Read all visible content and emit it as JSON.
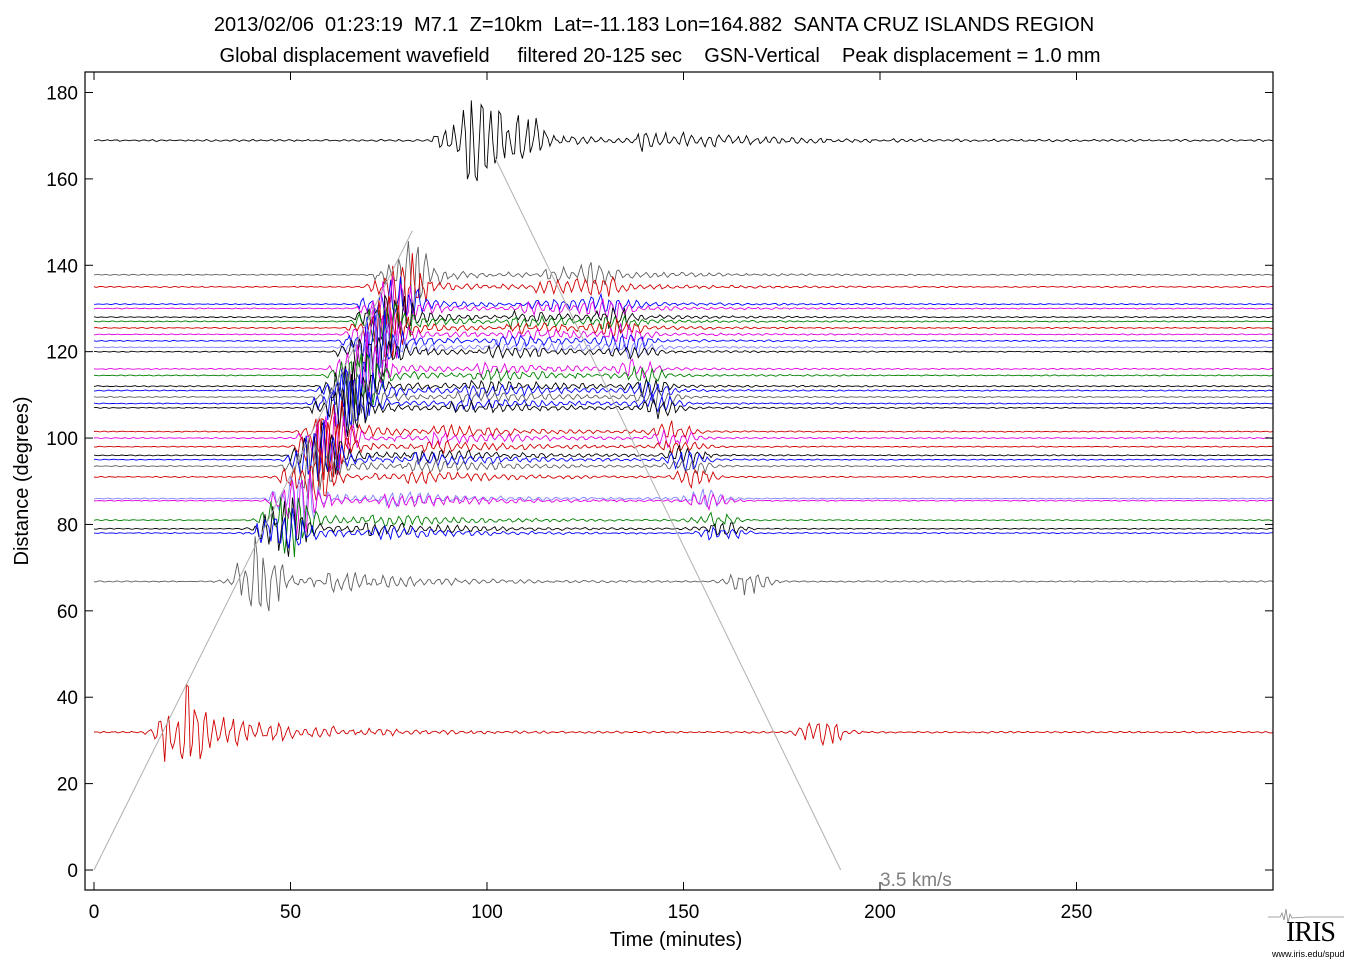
{
  "title_line1": "2013/02/06  01:23:19  M7.1  Z=10km  Lat=-11.183 Lon=164.882  SANTA CRUZ ISLANDS REGION",
  "title_line2": "Global displacement wavefield     filtered 20-125 sec    GSN-Vertical    Peak displacement = 1.0 mm",
  "logo": {
    "text": "IRIS",
    "url": "www.iris.edu/spud"
  },
  "chart_data": {
    "type": "line",
    "title": "2013/02/06  01:23:19  M7.1  Z=10km  Lat=-11.183 Lon=164.882  SANTA CRUZ ISLANDS REGION",
    "subtitle": "Global displacement wavefield     filtered 20-125 sec    GSN-Vertical    Peak displacement = 1.0 mm",
    "xlabel": "Time (minutes)",
    "ylabel": "Distance (degrees)",
    "xlim": [
      0,
      300
    ],
    "ylim": [
      -5,
      185
    ],
    "xticks": [
      0,
      50,
      100,
      150,
      200,
      250
    ],
    "yticks": [
      0,
      20,
      40,
      60,
      80,
      100,
      120,
      140,
      160,
      180
    ],
    "grid": false,
    "annotation": {
      "text": "3.5 km/s"
    },
    "guide_lines": [
      {
        "x": [
          0,
          81
        ],
        "y": [
          0,
          148
        ]
      },
      {
        "x": [
          102,
          190
        ],
        "y": [
          165,
          0
        ]
      }
    ],
    "colors": {
      "black": "#000000",
      "red": "#d00000",
      "blue": "#0000ff",
      "green": "#008000",
      "magenta": "#e000e0",
      "gray": "#606060",
      "lightblue": "#8080ff",
      "guide": "#b0b0b0",
      "label": "#808080"
    },
    "traces": [
      {
        "distance": 168.9,
        "color": "black",
        "scale": 1.0
      },
      {
        "distance": 137.8,
        "color": "gray",
        "scale": 0.6
      },
      {
        "distance": 135.0,
        "color": "red",
        "scale": 0.6
      },
      {
        "distance": 131.0,
        "color": "blue",
        "scale": 0.55
      },
      {
        "distance": 130.0,
        "color": "magenta",
        "scale": 0.55
      },
      {
        "distance": 128.0,
        "color": "black",
        "scale": 0.55
      },
      {
        "distance": 127.0,
        "color": "green",
        "scale": 0.55
      },
      {
        "distance": 125.5,
        "color": "red",
        "scale": 0.55
      },
      {
        "distance": 124.0,
        "color": "magenta",
        "scale": 0.55
      },
      {
        "distance": 122.5,
        "color": "blue",
        "scale": 0.55
      },
      {
        "distance": 121.0,
        "color": "lightblue",
        "scale": 0.55
      },
      {
        "distance": 120.0,
        "color": "black",
        "scale": 0.55
      },
      {
        "distance": 116.0,
        "color": "magenta",
        "scale": 0.55
      },
      {
        "distance": 114.5,
        "color": "green",
        "scale": 0.55
      },
      {
        "distance": 112.0,
        "color": "black",
        "scale": 0.6
      },
      {
        "distance": 111.0,
        "color": "blue",
        "scale": 0.6
      },
      {
        "distance": 109.5,
        "color": "gray",
        "scale": 0.55
      },
      {
        "distance": 108.0,
        "color": "blue",
        "scale": 0.55
      },
      {
        "distance": 107.0,
        "color": "black",
        "scale": 0.55
      },
      {
        "distance": 101.5,
        "color": "red",
        "scale": 0.55
      },
      {
        "distance": 100.0,
        "color": "magenta",
        "scale": 0.55
      },
      {
        "distance": 98.0,
        "color": "red",
        "scale": 0.55
      },
      {
        "distance": 96.0,
        "color": "black",
        "scale": 0.55
      },
      {
        "distance": 95.0,
        "color": "blue",
        "scale": 0.55
      },
      {
        "distance": 93.5,
        "color": "gray",
        "scale": 0.55
      },
      {
        "distance": 91.0,
        "color": "red",
        "scale": 0.55
      },
      {
        "distance": 86.0,
        "color": "lightblue",
        "scale": 0.55
      },
      {
        "distance": 85.5,
        "color": "magenta",
        "scale": 0.55
      },
      {
        "distance": 81.0,
        "color": "green",
        "scale": 0.55
      },
      {
        "distance": 79.0,
        "color": "black",
        "scale": 0.55
      },
      {
        "distance": 78.0,
        "color": "blue",
        "scale": 0.55
      },
      {
        "distance": 66.8,
        "color": "gray",
        "scale": 0.7
      },
      {
        "distance": 31.9,
        "color": "red",
        "scale": 0.9
      }
    ]
  }
}
